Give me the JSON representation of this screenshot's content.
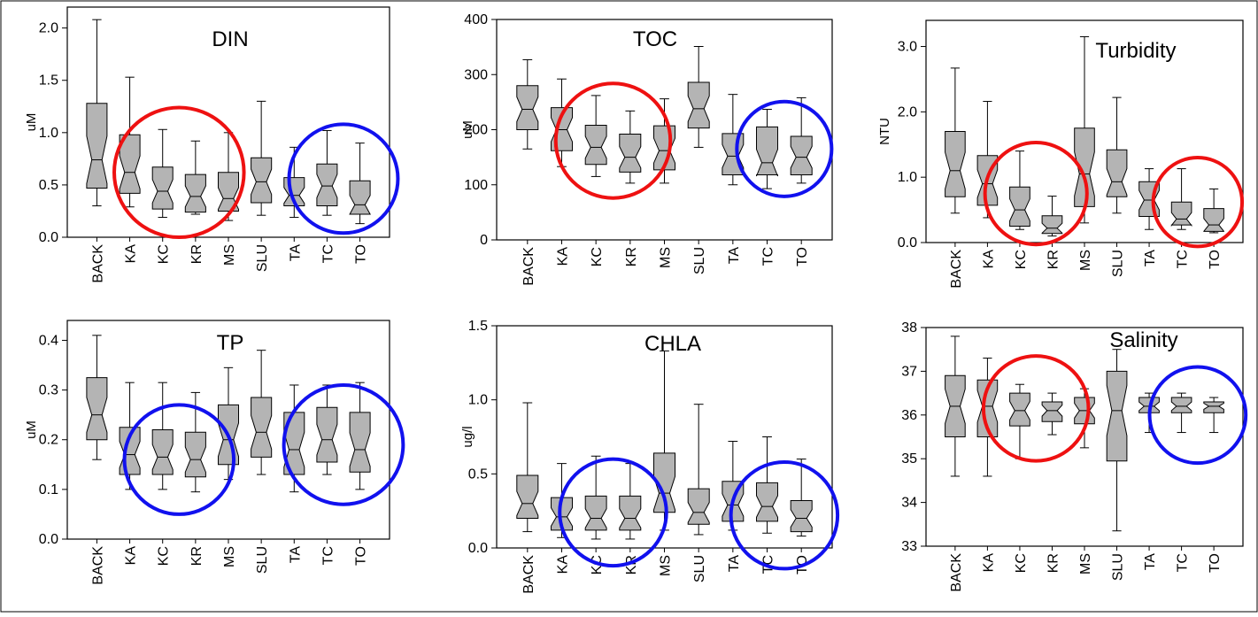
{
  "chart_data": [
    {
      "type": "box",
      "title": "DIN",
      "ylabel": "uM",
      "ylim": [
        0,
        2.2
      ],
      "yticks": [
        "0.0",
        "0.5",
        "1.0",
        "1.5",
        "2.0"
      ],
      "ytick_values": [
        0,
        0.5,
        1.0,
        1.5,
        2.0
      ],
      "categories": [
        "BACK",
        "KA",
        "KC",
        "KR",
        "MS",
        "SLU",
        "TA",
        "TC",
        "TO"
      ],
      "boxes": [
        {
          "min": 0.3,
          "q1": 0.47,
          "median": 0.74,
          "q3": 1.28,
          "max": 2.08
        },
        {
          "min": 0.29,
          "q1": 0.42,
          "median": 0.62,
          "q3": 0.98,
          "max": 1.53
        },
        {
          "min": 0.19,
          "q1": 0.27,
          "median": 0.44,
          "q3": 0.67,
          "max": 1.03
        },
        {
          "min": 0.22,
          "q1": 0.24,
          "median": 0.39,
          "q3": 0.6,
          "max": 0.92
        },
        {
          "min": 0.16,
          "q1": 0.25,
          "median": 0.37,
          "q3": 0.62,
          "max": 1.0
        },
        {
          "min": 0.21,
          "q1": 0.33,
          "median": 0.53,
          "q3": 0.76,
          "max": 1.3
        },
        {
          "min": 0.19,
          "q1": 0.3,
          "median": 0.4,
          "q3": 0.57,
          "max": 0.86
        },
        {
          "min": 0.21,
          "q1": 0.3,
          "median": 0.49,
          "q3": 0.7,
          "max": 1.02
        },
        {
          "min": 0.13,
          "q1": 0.22,
          "median": 0.31,
          "q3": 0.54,
          "max": 0.9
        }
      ],
      "circles": [
        {
          "color": "#ee1111",
          "cx": 2.5,
          "cy": 0.62,
          "r": 0.62
        },
        {
          "color": "#1111ee",
          "cx": 7.5,
          "cy": 0.56,
          "r": 0.52
        }
      ]
    },
    {
      "type": "box",
      "title": "TOC",
      "ylabel": "uM",
      "ylim": [
        0,
        400
      ],
      "yticks": [
        "0",
        "100",
        "200",
        "300",
        "400"
      ],
      "ytick_values": [
        0,
        100,
        200,
        300,
        400
      ],
      "categories": [
        "BACK",
        "KA",
        "KC",
        "KR",
        "MS",
        "SLU",
        "TA",
        "TC",
        "TO"
      ],
      "boxes": [
        {
          "min": 165,
          "q1": 200,
          "median": 237,
          "q3": 280,
          "max": 327
        },
        {
          "min": 133,
          "q1": 162,
          "median": 200,
          "q3": 240,
          "max": 292
        },
        {
          "min": 115,
          "q1": 137,
          "median": 168,
          "q3": 208,
          "max": 262
        },
        {
          "min": 103,
          "q1": 123,
          "median": 150,
          "q3": 192,
          "max": 234
        },
        {
          "min": 103,
          "q1": 127,
          "median": 162,
          "q3": 207,
          "max": 256
        },
        {
          "min": 168,
          "q1": 203,
          "median": 238,
          "q3": 286,
          "max": 351
        },
        {
          "min": 100,
          "q1": 118,
          "median": 152,
          "q3": 193,
          "max": 264
        },
        {
          "min": 93,
          "q1": 118,
          "median": 140,
          "q3": 205,
          "max": 237
        },
        {
          "min": 103,
          "q1": 118,
          "median": 150,
          "q3": 188,
          "max": 258
        }
      ],
      "circles": [
        {
          "color": "#ee1111",
          "cx": 2.5,
          "cy": 180,
          "r": 104
        },
        {
          "color": "#1111ee",
          "cx": 7.5,
          "cy": 165,
          "r": 86
        }
      ]
    },
    {
      "type": "box",
      "title": "Turbidity",
      "ylabel": "NTU",
      "ylim": [
        0,
        3.4
      ],
      "yticks": [
        "0.0",
        "1.0",
        "2.0",
        "3.0"
      ],
      "ytick_values": [
        0,
        1.0,
        2.0,
        3.0
      ],
      "categories": [
        "BACK",
        "KA",
        "KC",
        "KR",
        "MS",
        "SLU",
        "TA",
        "TC",
        "TO"
      ],
      "boxes": [
        {
          "min": 0.45,
          "q1": 0.7,
          "median": 1.1,
          "q3": 1.7,
          "max": 2.67
        },
        {
          "min": 0.38,
          "q1": 0.57,
          "median": 0.9,
          "q3": 1.33,
          "max": 2.16
        },
        {
          "min": 0.2,
          "q1": 0.25,
          "median": 0.5,
          "q3": 0.85,
          "max": 1.4
        },
        {
          "min": 0.1,
          "q1": 0.14,
          "median": 0.22,
          "q3": 0.41,
          "max": 0.71
        },
        {
          "min": 0.3,
          "q1": 0.55,
          "median": 1.05,
          "q3": 1.75,
          "max": 3.15
        },
        {
          "min": 0.45,
          "q1": 0.7,
          "median": 0.93,
          "q3": 1.42,
          "max": 2.22
        },
        {
          "min": 0.2,
          "q1": 0.4,
          "median": 0.65,
          "q3": 0.93,
          "max": 1.13
        },
        {
          "min": 0.2,
          "q1": 0.27,
          "median": 0.36,
          "q3": 0.62,
          "max": 1.13
        },
        {
          "min": 0.15,
          "q1": 0.17,
          "median": 0.27,
          "q3": 0.52,
          "max": 0.82
        }
      ],
      "circles": [
        {
          "color": "#ee1111",
          "cx": 2.5,
          "cy": 0.75,
          "r": 0.78
        },
        {
          "color": "#ee1111",
          "cx": 7.5,
          "cy": 0.62,
          "r": 0.68
        }
      ]
    },
    {
      "type": "box",
      "title": "TP",
      "ylabel": "uM",
      "ylim": [
        0,
        0.44
      ],
      "yticks": [
        "0.0",
        "0.1",
        "0.2",
        "0.3",
        "0.4"
      ],
      "ytick_values": [
        0,
        0.1,
        0.2,
        0.3,
        0.4
      ],
      "categories": [
        "BACK",
        "KA",
        "KC",
        "KR",
        "MS",
        "SLU",
        "TA",
        "TC",
        "TO"
      ],
      "boxes": [
        {
          "min": 0.16,
          "q1": 0.2,
          "median": 0.25,
          "q3": 0.325,
          "max": 0.41
        },
        {
          "min": 0.1,
          "q1": 0.13,
          "median": 0.17,
          "q3": 0.225,
          "max": 0.315
        },
        {
          "min": 0.1,
          "q1": 0.13,
          "median": 0.165,
          "q3": 0.22,
          "max": 0.315
        },
        {
          "min": 0.095,
          "q1": 0.125,
          "median": 0.16,
          "q3": 0.215,
          "max": 0.295
        },
        {
          "min": 0.12,
          "q1": 0.15,
          "median": 0.2,
          "q3": 0.27,
          "max": 0.345
        },
        {
          "min": 0.13,
          "q1": 0.165,
          "median": 0.215,
          "q3": 0.285,
          "max": 0.38
        },
        {
          "min": 0.095,
          "q1": 0.13,
          "median": 0.18,
          "q3": 0.255,
          "max": 0.31
        },
        {
          "min": 0.13,
          "q1": 0.155,
          "median": 0.2,
          "q3": 0.265,
          "max": 0.31
        },
        {
          "min": 0.1,
          "q1": 0.135,
          "median": 0.18,
          "q3": 0.255,
          "max": 0.315
        }
      ],
      "circles": [
        {
          "color": "#1111ee",
          "cx": 2.5,
          "cy": 0.16,
          "r": 0.11
        },
        {
          "color": "#1111ee",
          "cx": 7.5,
          "cy": 0.19,
          "r": 0.12
        }
      ]
    },
    {
      "type": "box",
      "title": "CHLA",
      "ylabel": "ug/l",
      "ylim": [
        0,
        1.5
      ],
      "yticks": [
        "0.0",
        "0.5",
        "1.0",
        "1.5"
      ],
      "ytick_values": [
        0,
        0.5,
        1.0,
        1.5
      ],
      "categories": [
        "BACK",
        "KA",
        "KC",
        "KR",
        "MS",
        "SLU",
        "TA",
        "TC",
        "TO"
      ],
      "boxes": [
        {
          "min": 0.11,
          "q1": 0.2,
          "median": 0.3,
          "q3": 0.49,
          "max": 0.98
        },
        {
          "min": 0.07,
          "q1": 0.12,
          "median": 0.21,
          "q3": 0.34,
          "max": 0.57
        },
        {
          "min": 0.06,
          "q1": 0.12,
          "median": 0.2,
          "q3": 0.35,
          "max": 0.62
        },
        {
          "min": 0.06,
          "q1": 0.12,
          "median": 0.2,
          "q3": 0.35,
          "max": 0.57
        },
        {
          "min": 0.12,
          "q1": 0.24,
          "median": 0.37,
          "q3": 0.64,
          "max": 1.33
        },
        {
          "min": 0.09,
          "q1": 0.16,
          "median": 0.24,
          "q3": 0.4,
          "max": 0.97
        },
        {
          "min": 0.12,
          "q1": 0.18,
          "median": 0.29,
          "q3": 0.45,
          "max": 0.72
        },
        {
          "min": 0.1,
          "q1": 0.18,
          "median": 0.28,
          "q3": 0.44,
          "max": 0.75
        },
        {
          "min": 0.08,
          "q1": 0.11,
          "median": 0.2,
          "q3": 0.32,
          "max": 0.6
        }
      ],
      "circles": [
        {
          "color": "#1111ee",
          "cx": 2.5,
          "cy": 0.24,
          "r": 0.36
        },
        {
          "color": "#1111ee",
          "cx": 7.5,
          "cy": 0.22,
          "r": 0.36
        }
      ]
    },
    {
      "type": "box",
      "title": "Salinity",
      "ylabel": "",
      "ylim": [
        33,
        38
      ],
      "yticks": [
        "33",
        "34",
        "35",
        "36",
        "37",
        "38"
      ],
      "ytick_values": [
        33,
        34,
        35,
        36,
        37,
        38
      ],
      "categories": [
        "BACK",
        "KA",
        "KC",
        "KR",
        "MS",
        "SLU",
        "TA",
        "TC",
        "TO"
      ],
      "boxes": [
        {
          "min": 34.6,
          "q1": 35.5,
          "median": 36.2,
          "q3": 36.9,
          "max": 37.8
        },
        {
          "min": 34.6,
          "q1": 35.5,
          "median": 36.2,
          "q3": 36.8,
          "max": 37.3
        },
        {
          "min": 35.0,
          "q1": 35.75,
          "median": 36.1,
          "q3": 36.5,
          "max": 36.7
        },
        {
          "min": 35.55,
          "q1": 35.85,
          "median": 36.1,
          "q3": 36.3,
          "max": 36.5
        },
        {
          "min": 35.25,
          "q1": 35.8,
          "median": 36.1,
          "q3": 36.4,
          "max": 36.6
        },
        {
          "min": 33.35,
          "q1": 34.95,
          "median": 36.1,
          "q3": 37.0,
          "max": 37.5
        },
        {
          "min": 35.6,
          "q1": 36.05,
          "median": 36.2,
          "q3": 36.4,
          "max": 36.5
        },
        {
          "min": 35.6,
          "q1": 36.05,
          "median": 36.2,
          "q3": 36.4,
          "max": 36.5
        },
        {
          "min": 35.6,
          "q1": 36.05,
          "median": 36.2,
          "q3": 36.3,
          "max": 36.4
        }
      ],
      "circles": [
        {
          "color": "#ee1111",
          "cx": 2.5,
          "cy": 36.15,
          "r": 1.2
        },
        {
          "color": "#1111ee",
          "cx": 7.5,
          "cy": 36.0,
          "r": 1.1
        }
      ]
    }
  ]
}
